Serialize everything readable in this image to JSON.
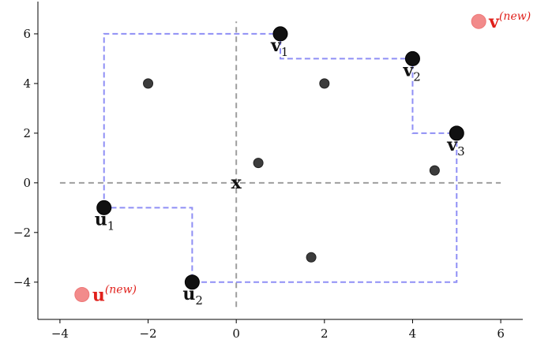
{
  "chart_data": {
    "type": "scatter",
    "title": "",
    "xlabel": "",
    "ylabel": "",
    "xlim": [
      -4.5,
      6.5
    ],
    "ylim": [
      -5.5,
      7.3
    ],
    "x_ticks": [
      -4,
      -2,
      0,
      2,
      4,
      6
    ],
    "x_tick_labels": [
      "−4",
      "−2",
      "0",
      "2",
      "4",
      "6"
    ],
    "y_ticks": [
      -4,
      -2,
      0,
      2,
      4,
      6
    ],
    "y_tick_labels": [
      "−4",
      "−2",
      "0",
      "2",
      "4",
      "6"
    ],
    "grid": false,
    "spines": [
      "left",
      "bottom"
    ],
    "reference_lines": {
      "horizontal": {
        "y": 0,
        "x_from": -4,
        "x_to": 6,
        "color": "#9e9e9e"
      },
      "vertical": {
        "x": 0,
        "y_from": -5,
        "y_to": 6.5,
        "color": "#9e9e9e"
      }
    },
    "query_point": {
      "x": 0,
      "y": 0,
      "label": "x"
    },
    "background_points": [
      {
        "x": -2,
        "y": 4
      },
      {
        "x": 2,
        "y": 4
      },
      {
        "x": 0.5,
        "y": 0.8
      },
      {
        "x": 4.5,
        "y": 0.5
      },
      {
        "x": 1.7,
        "y": -3
      }
    ],
    "labeled_points": [
      {
        "name": "v",
        "sub": "1",
        "x": 1,
        "y": 6,
        "color": "#111111"
      },
      {
        "name": "v",
        "sub": "2",
        "x": 4,
        "y": 5,
        "color": "#111111"
      },
      {
        "name": "v",
        "sub": "3",
        "x": 5,
        "y": 2,
        "color": "#111111"
      },
      {
        "name": "u",
        "sub": "1",
        "x": -3,
        "y": -1,
        "color": "#111111"
      },
      {
        "name": "u",
        "sub": "2",
        "x": -1,
        "y": -4,
        "color": "#111111"
      }
    ],
    "new_points": [
      {
        "name": "v",
        "sup": "(new)",
        "x": 5.5,
        "y": 6.5,
        "color": "#f28b8b"
      },
      {
        "name": "u",
        "sup": "(new)",
        "x": -3.5,
        "y": -4.5,
        "color": "#f28b8b"
      }
    ],
    "staircase_paths": [
      {
        "color": "#8f8ff5",
        "points": [
          [
            -3,
            -1
          ],
          [
            -3,
            6
          ],
          [
            1,
            6
          ],
          [
            1,
            5
          ],
          [
            4,
            5
          ],
          [
            4,
            2
          ],
          [
            5,
            2
          ],
          [
            5,
            -4
          ],
          [
            -1,
            -4
          ],
          [
            -1,
            -1
          ],
          [
            -3,
            -1
          ]
        ]
      }
    ]
  }
}
